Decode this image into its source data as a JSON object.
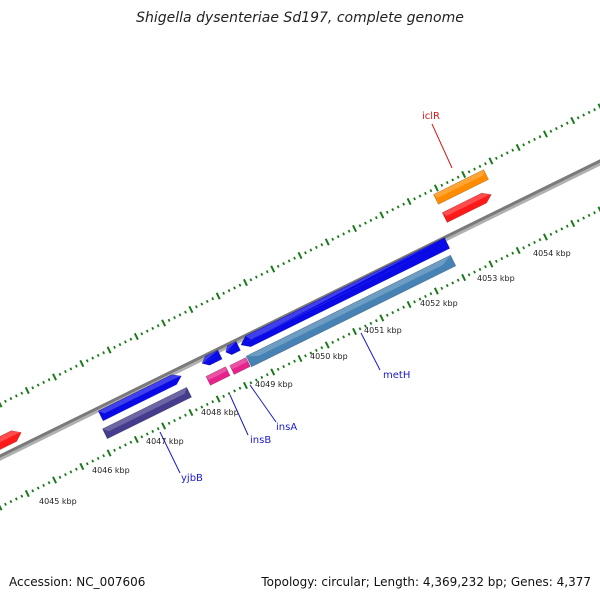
{
  "title": "Shigella dysenteriae Sd197, complete genome",
  "footer": {
    "accession": "Accession: NC_007606",
    "summary": "Topology: circular; Length: 4,369,232 bp; Genes: 4,377"
  },
  "colors": {
    "backbone": "#808080",
    "tick_marks": "#1a7a1a",
    "label_blue": "#1a1acc",
    "label_red": "#cc1a1a"
  },
  "scale_labels": [
    "4045 kbp",
    "4046 kbp",
    "4047 kbp",
    "4048 kbp",
    "4049 kbp",
    "4050 kbp",
    "4051 kbp",
    "4052 kbp",
    "4053 kbp",
    "4054 kbp"
  ],
  "gene_labels": [
    {
      "name": "iclR",
      "color": "#cc1a1a"
    },
    {
      "name": "metH",
      "color": "#1a1acc"
    },
    {
      "name": "insA",
      "color": "#1a1acc"
    },
    {
      "name": "insB",
      "color": "#1a1acc"
    },
    {
      "name": "yjbB",
      "color": "#1a1acc"
    }
  ],
  "features": [
    {
      "color": "#ff1a1a"
    },
    {
      "color": "#0a0ae6"
    },
    {
      "color": "#443c8c"
    },
    {
      "color": "#0a0ae6"
    },
    {
      "color": "#0a0ae6"
    },
    {
      "color": "#e6228c"
    },
    {
      "color": "#e6228c"
    },
    {
      "color": "#0a0ae6"
    },
    {
      "color": "#4682b4"
    },
    {
      "color": "#ff8c00"
    },
    {
      "color": "#ff1a1a"
    }
  ]
}
